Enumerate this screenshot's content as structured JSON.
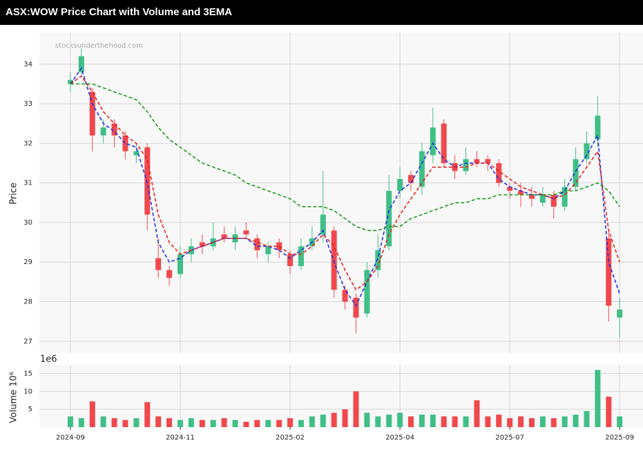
{
  "chart_data": {
    "type": "candlestick",
    "title": "ASX:WOW Price Chart with Volume and 3EMA",
    "watermark": "stocksunderthehood.com",
    "ylabel": "Price",
    "x": [
      0,
      4,
      8,
      12,
      16,
      20,
      24,
      28,
      32,
      36,
      40,
      44,
      48,
      52,
      56,
      60,
      64,
      68,
      72,
      76,
      80,
      84,
      88,
      92,
      96,
      100,
      104,
      108,
      112,
      116,
      120,
      124,
      128,
      132,
      136,
      140,
      144,
      148,
      152,
      156,
      160,
      164,
      168,
      172,
      176,
      180,
      184,
      188,
      192,
      196,
      200
    ],
    "open": [
      33.5,
      33.8,
      33.3,
      32.2,
      32.5,
      32.2,
      31.7,
      31.9,
      29.1,
      28.8,
      28.7,
      29.2,
      29.5,
      29.4,
      29.7,
      29.5,
      29.8,
      29.6,
      29.2,
      29.5,
      29.2,
      28.9,
      29.4,
      29.7,
      29.8,
      28.3,
      28.1,
      27.7,
      28.8,
      29.4,
      30.8,
      31.2,
      30.9,
      31.7,
      32.5,
      31.5,
      31.3,
      31.6,
      31.6,
      31.5,
      30.9,
      30.8,
      30.7,
      30.5,
      30.7,
      30.4,
      30.9,
      31.6,
      32.1,
      29.6,
      27.6
    ],
    "high": [
      33.8,
      34.4,
      33.4,
      32.6,
      32.6,
      32.3,
      32.0,
      32.0,
      29.6,
      28.9,
      29.4,
      29.6,
      29.7,
      30.0,
      29.9,
      29.9,
      30.0,
      29.7,
      29.5,
      29.6,
      29.3,
      29.6,
      29.9,
      31.3,
      29.9,
      28.4,
      28.2,
      29.0,
      29.7,
      31.2,
      31.4,
      31.3,
      32.0,
      32.9,
      32.6,
      31.7,
      31.9,
      31.8,
      31.7,
      31.6,
      31.0,
      31.0,
      30.9,
      30.9,
      30.8,
      31.1,
      31.9,
      32.3,
      33.2,
      29.8,
      28.1
    ],
    "low": [
      33.3,
      33.7,
      31.8,
      32.0,
      31.9,
      31.6,
      31.5,
      29.8,
      28.6,
      28.4,
      28.6,
      29.0,
      29.2,
      29.3,
      29.5,
      29.3,
      29.6,
      29.1,
      29.0,
      29.1,
      28.7,
      28.8,
      29.3,
      29.5,
      28.1,
      27.8,
      27.2,
      27.6,
      28.6,
      29.3,
      30.6,
      30.8,
      30.7,
      31.5,
      31.4,
      31.1,
      31.2,
      31.4,
      31.3,
      30.9,
      30.6,
      30.4,
      30.4,
      30.4,
      30.1,
      30.3,
      30.8,
      31.5,
      31.9,
      27.5,
      27.1
    ],
    "close": [
      33.6,
      34.2,
      32.2,
      32.4,
      32.2,
      31.8,
      31.8,
      30.2,
      28.8,
      28.6,
      29.2,
      29.4,
      29.4,
      29.6,
      29.6,
      29.7,
      29.7,
      29.3,
      29.4,
      29.3,
      28.9,
      29.4,
      29.6,
      30.2,
      28.3,
      28.0,
      27.6,
      28.8,
      29.3,
      30.8,
      31.1,
      31.0,
      31.8,
      32.4,
      31.5,
      31.3,
      31.6,
      31.5,
      31.5,
      31.0,
      30.8,
      30.7,
      30.6,
      30.7,
      30.4,
      30.9,
      31.6,
      32.0,
      32.7,
      27.9,
      27.8
    ],
    "up_color": "#3fbf86",
    "down_color": "#f0484c",
    "series": [
      {
        "color": "#1f2ee6",
        "values": [
          33.5,
          33.9,
          33.0,
          32.5,
          32.3,
          32.0,
          31.9,
          31.0,
          29.5,
          29.0,
          29.1,
          29.3,
          29.4,
          29.5,
          29.6,
          29.6,
          29.6,
          29.4,
          29.4,
          29.3,
          29.1,
          29.3,
          29.5,
          29.8,
          29.0,
          28.3,
          27.9,
          28.5,
          29.1,
          30.3,
          30.8,
          31.0,
          31.5,
          32.0,
          31.6,
          31.4,
          31.5,
          31.5,
          31.5,
          31.1,
          30.9,
          30.8,
          30.7,
          30.7,
          30.6,
          30.8,
          31.3,
          31.7,
          32.2,
          29.0,
          28.2
        ]
      },
      {
        "color": "#e62020",
        "values": [
          33.5,
          33.7,
          33.3,
          32.8,
          32.5,
          32.2,
          32.0,
          31.6,
          30.2,
          29.5,
          29.2,
          29.3,
          29.4,
          29.5,
          29.6,
          29.6,
          29.6,
          29.5,
          29.4,
          29.4,
          29.2,
          29.2,
          29.4,
          29.7,
          29.4,
          28.8,
          28.3,
          28.5,
          28.9,
          29.7,
          30.2,
          30.6,
          31.0,
          31.4,
          31.4,
          31.4,
          31.4,
          31.5,
          31.5,
          31.3,
          31.1,
          30.9,
          30.8,
          30.7,
          30.6,
          30.7,
          31.0,
          31.4,
          31.8,
          29.8,
          29.0
        ]
      },
      {
        "color": "#1e9a1e",
        "values": [
          33.5,
          33.5,
          33.5,
          33.4,
          33.3,
          33.2,
          33.1,
          32.8,
          32.4,
          32.1,
          31.9,
          31.7,
          31.5,
          31.4,
          31.3,
          31.2,
          31.0,
          30.9,
          30.8,
          30.7,
          30.6,
          30.4,
          30.4,
          30.4,
          30.3,
          30.1,
          29.9,
          29.8,
          29.8,
          29.9,
          29.9,
          30.1,
          30.2,
          30.3,
          30.4,
          30.5,
          30.5,
          30.6,
          30.6,
          30.7,
          30.7,
          30.7,
          30.7,
          30.7,
          30.7,
          30.8,
          30.8,
          30.9,
          31.0,
          30.8,
          30.4
        ]
      }
    ],
    "ylim": [
      26.7,
      34.8
    ],
    "yticks": [
      27,
      28,
      29,
      30,
      31,
      32,
      33,
      34
    ],
    "xlim": [
      -11.3,
      208.5
    ],
    "xticks": [
      {
        "value": 0,
        "label": "2024-09"
      },
      {
        "value": 40,
        "label": "2024-11"
      },
      {
        "value": 80,
        "label": "2025-02"
      },
      {
        "value": 120,
        "label": "2025-04"
      },
      {
        "value": 160,
        "label": "2025-07"
      },
      {
        "value": 200,
        "label": "2025-09"
      }
    ],
    "grid": true,
    "volume": {
      "ylabel": "Volume  10⁶",
      "offset_label": "1e6",
      "values": [
        3,
        2.5,
        7.2,
        3,
        2.5,
        2,
        2.5,
        7,
        3,
        2.5,
        2,
        2.5,
        2,
        2,
        2.5,
        2,
        1.5,
        2,
        2,
        2,
        2.5,
        2,
        3,
        3.5,
        4,
        5,
        10,
        4,
        3,
        3.5,
        4,
        3,
        3.5,
        3.5,
        3,
        3,
        3,
        7.5,
        3,
        3.5,
        2.5,
        3,
        2.5,
        3,
        2.5,
        3,
        3.5,
        4.5,
        16,
        8.5,
        3
      ],
      "ylim": [
        0,
        17.4
      ],
      "yticks": [
        5,
        10,
        15
      ]
    }
  }
}
